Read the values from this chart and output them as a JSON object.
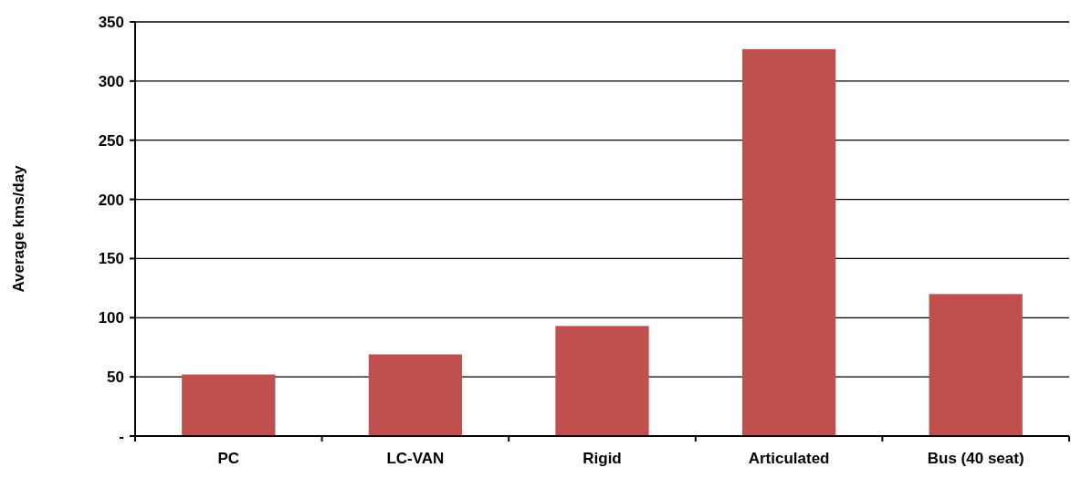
{
  "chart_data": {
    "type": "bar",
    "ylabel": "Average kms/day",
    "categories": [
      "PC",
      "LC-VAN",
      "Rigid",
      "Articulated",
      "Bus (40 seat)"
    ],
    "values": [
      52,
      69,
      93,
      327,
      120
    ],
    "color": "#c0504d",
    "ylim": [
      0,
      350
    ],
    "yticks": [
      {
        "value": 0,
        "label": "-"
      },
      50,
      100,
      150,
      200,
      250,
      300,
      350
    ],
    "grid": "y"
  }
}
